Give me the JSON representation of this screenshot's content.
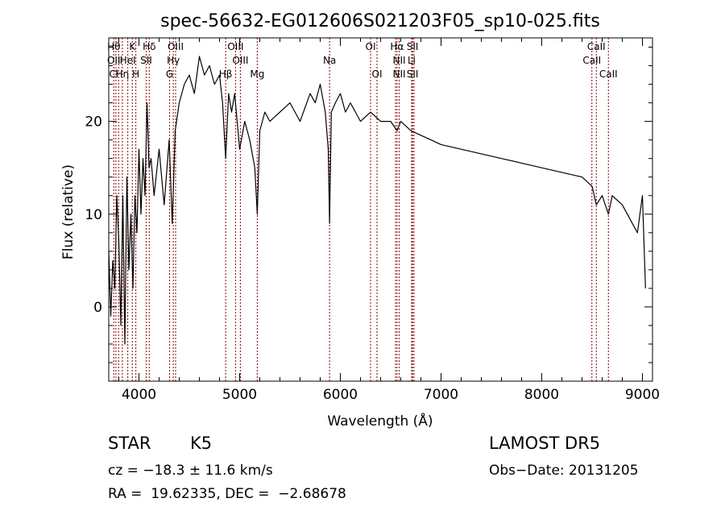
{
  "chart_data": {
    "type": "line",
    "title": "spec-56632-EG012606S021203F05_sp10-025.fits",
    "xlabel": "Wavelength (Å)",
    "ylabel": "Flux (relative)",
    "xlim": [
      3700,
      9100
    ],
    "ylim": [
      -8,
      29
    ],
    "xticks": [
      4000,
      5000,
      6000,
      7000,
      8000,
      9000
    ],
    "yticks": [
      0,
      10,
      20
    ],
    "grid": false,
    "line_color": "#000000",
    "marker_color": "#8b0000",
    "series": [
      {
        "x": [
          3700,
          3720,
          3740,
          3760,
          3780,
          3800,
          3820,
          3840,
          3860,
          3880,
          3900,
          3920,
          3940,
          3960,
          3980,
          4000,
          4020,
          4040,
          4060,
          4080,
          4100,
          4120,
          4150,
          4200,
          4250,
          4300,
          4330,
          4360,
          4400,
          4450,
          4500,
          4550,
          4600,
          4650,
          4700,
          4750,
          4800,
          4830,
          4861,
          4890,
          4920,
          4950,
          5000,
          5050,
          5100,
          5150,
          5175,
          5200,
          5250,
          5300,
          5400,
          5500,
          5600,
          5700,
          5750,
          5800,
          5850,
          5880,
          5893,
          5910,
          5950,
          6000,
          6050,
          6100,
          6200,
          6300,
          6400,
          6500,
          6563,
          6600,
          6700,
          6800,
          6900,
          7000,
          7200,
          7400,
          7600,
          7800,
          8000,
          8200,
          8400,
          8500,
          8542,
          8600,
          8662,
          8700,
          8800,
          8850,
          8900,
          8950,
          9000,
          9030
        ],
        "y": [
          6,
          -1,
          5,
          2,
          12,
          7,
          -2,
          12,
          -4,
          14,
          4,
          10,
          2,
          12,
          8,
          17,
          10,
          16,
          12,
          22,
          15,
          16,
          12,
          17,
          11,
          18,
          9,
          19,
          22,
          24,
          25,
          23,
          27,
          25,
          26,
          24,
          25,
          22,
          16,
          23,
          21,
          23,
          17,
          20,
          18,
          15,
          10,
          19,
          21,
          20,
          21,
          22,
          20,
          23,
          22,
          24,
          21,
          17,
          9,
          21,
          22,
          23,
          21,
          22,
          20,
          21,
          20,
          20,
          19,
          20,
          19,
          18.5,
          18,
          17.5,
          17,
          16.5,
          16,
          15.5,
          15,
          14.5,
          14,
          13,
          11,
          12,
          10,
          12,
          11,
          10,
          9,
          8,
          12,
          2
        ]
      }
    ],
    "lines": [
      {
        "x": 3750,
        "labels": [
          {
            "text": "Hθ",
            "row": 0
          },
          {
            "text": "OII",
            "row": 1
          },
          {
            "text": "Cl",
            "row": 2
          }
        ]
      },
      {
        "x": 3771
      },
      {
        "x": 3798
      },
      {
        "x": 3835,
        "labels": [
          {
            "text": "Hη",
            "row": 2
          }
        ]
      },
      {
        "x": 3889,
        "labels": [
          {
            "text": "HeI",
            "row": 1
          }
        ]
      },
      {
        "x": 3934,
        "labels": [
          {
            "text": "K",
            "row": 0
          }
        ]
      },
      {
        "x": 3969,
        "labels": [
          {
            "text": "H",
            "row": 2
          }
        ]
      },
      {
        "x": 4072,
        "labels": [
          {
            "text": "SII",
            "row": 1
          }
        ]
      },
      {
        "x": 4102,
        "labels": [
          {
            "text": "Hδ",
            "row": 0
          }
        ]
      },
      {
        "x": 4304,
        "labels": [
          {
            "text": "G",
            "row": 2
          }
        ]
      },
      {
        "x": 4341,
        "labels": [
          {
            "text": "Hγ",
            "row": 1
          }
        ]
      },
      {
        "x": 4364,
        "labels": [
          {
            "text": "OIII",
            "row": 0
          }
        ]
      },
      {
        "x": 4861,
        "labels": [
          {
            "text": "Hβ",
            "row": 2
          }
        ]
      },
      {
        "x": 4959,
        "labels": [
          {
            "text": "OIII",
            "row": 0
          }
        ]
      },
      {
        "x": 5007,
        "labels": [
          {
            "text": "OIII",
            "row": 1
          }
        ]
      },
      {
        "x": 5175,
        "labels": [
          {
            "text": "Mg",
            "row": 2
          }
        ]
      },
      {
        "x": 5893,
        "labels": [
          {
            "text": "Na",
            "row": 1
          }
        ]
      },
      {
        "x": 6300,
        "labels": [
          {
            "text": "OI",
            "row": 0
          }
        ]
      },
      {
        "x": 6364,
        "labels": [
          {
            "text": "OI",
            "row": 2
          }
        ]
      },
      {
        "x": 6548
      },
      {
        "x": 6563,
        "labels": [
          {
            "text": "Hα",
            "row": 0
          }
        ]
      },
      {
        "x": 6584,
        "labels": [
          {
            "text": "NII",
            "row": 1
          },
          {
            "text": "NII",
            "row": 2
          }
        ]
      },
      {
        "x": 6708,
        "labels": [
          {
            "text": "Li",
            "row": 1
          }
        ]
      },
      {
        "x": 6717,
        "labels": [
          {
            "text": "SII",
            "row": 0
          },
          {
            "text": "SII",
            "row": 2
          }
        ]
      },
      {
        "x": 6731
      },
      {
        "x": 8498,
        "labels": [
          {
            "text": "CaII",
            "row": 1
          }
        ]
      },
      {
        "x": 8542,
        "labels": [
          {
            "text": "CaII",
            "row": 0
          }
        ]
      },
      {
        "x": 8662,
        "labels": [
          {
            "text": "CaII",
            "row": 2
          }
        ]
      }
    ]
  },
  "info": {
    "class_text": "STAR",
    "subclass_text": "K5",
    "cz_text": "cz = −18.3 ± 11.6 km/s",
    "radec_text": "RA =  19.62335, DEC =  −2.68678",
    "survey_text": "LAMOST DR5",
    "obsdate_text": "Obs−Date: 20131205"
  }
}
